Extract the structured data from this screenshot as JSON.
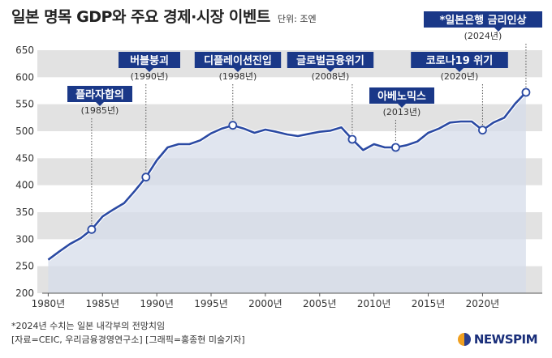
{
  "title": "일본 명목 GDP와 주요 경제·시장 이벤트",
  "unit": "단위: 조엔",
  "footnotes": {
    "note": "*2024년 수치는 일본 내각부의 전망치임",
    "source": "[자료=CEIC, 우리금융경영연구소] [그래픽=홍종현 미술기자]"
  },
  "logo": {
    "text": "NEWSPIM",
    "icon": "newspim-logo-icon"
  },
  "colors": {
    "line": "#2b4aa3",
    "label_box": "#1a3888",
    "band": "#e2e2e2",
    "area": "#d5dcea"
  },
  "chart_data": {
    "type": "area",
    "title": "일본 명목 GDP와 주요 경제·시장 이벤트",
    "ylim": [
      200,
      650
    ],
    "y_ticks": [
      200,
      250,
      300,
      350,
      400,
      450,
      500,
      550,
      600,
      650
    ],
    "x_ticks": [
      "1980년",
      "1985년",
      "1990년",
      "1995년",
      "2000년",
      "2005년",
      "2010년",
      "2015년",
      "2020년"
    ],
    "x_tick_years": [
      1980,
      1985,
      1990,
      1995,
      2000,
      2005,
      2010,
      2015,
      2020
    ],
    "grid": "alternating horizontal bands",
    "series": [
      {
        "x": [
          1980,
          1981,
          1982,
          1983,
          1984,
          1985,
          1986,
          1987,
          1988,
          1989,
          1990,
          1991,
          1992,
          1993,
          1994,
          1995,
          1996,
          1997,
          1998,
          1999,
          2000,
          2001,
          2002,
          2003,
          2004,
          2005,
          2006,
          2007,
          2008,
          2009,
          2010,
          2011,
          2012,
          2013,
          2014,
          2015,
          2016,
          2017,
          2018,
          2019,
          2020,
          2021,
          2022,
          2023,
          2024
        ],
        "values": [
          262,
          277,
          291,
          302,
          318,
          342,
          355,
          367,
          390,
          415,
          446,
          470,
          476,
          476,
          483,
          496,
          505,
          511,
          505,
          497,
          503,
          499,
          494,
          491,
          495,
          499,
          501,
          507,
          485,
          465,
          476,
          470,
          470,
          474,
          481,
          497,
          505,
          516,
          518,
          518,
          502,
          516,
          525,
          551,
          572
        ]
      }
    ],
    "annotations": [
      {
        "year": 1984,
        "value": 318,
        "label": "플라자합의",
        "sub": "(1985년)"
      },
      {
        "year": 1989,
        "value": 415,
        "label": "버블붕괴",
        "sub": "(1990년)"
      },
      {
        "year": 1997,
        "value": 511,
        "label": "디플레이션진입",
        "sub": "(1998년)"
      },
      {
        "year": 2008,
        "value": 485,
        "label": "글로벌금융위기",
        "sub": "(2008년)"
      },
      {
        "year": 2012,
        "value": 470,
        "label": "아베노믹스",
        "sub": "(2013년)"
      },
      {
        "year": 2020,
        "value": 502,
        "label": "코로나19 위기",
        "sub": "(2020년)"
      },
      {
        "year": 2024,
        "value": 572,
        "label": "*일본은행 금리인상",
        "sub": "(2024년)"
      }
    ]
  }
}
